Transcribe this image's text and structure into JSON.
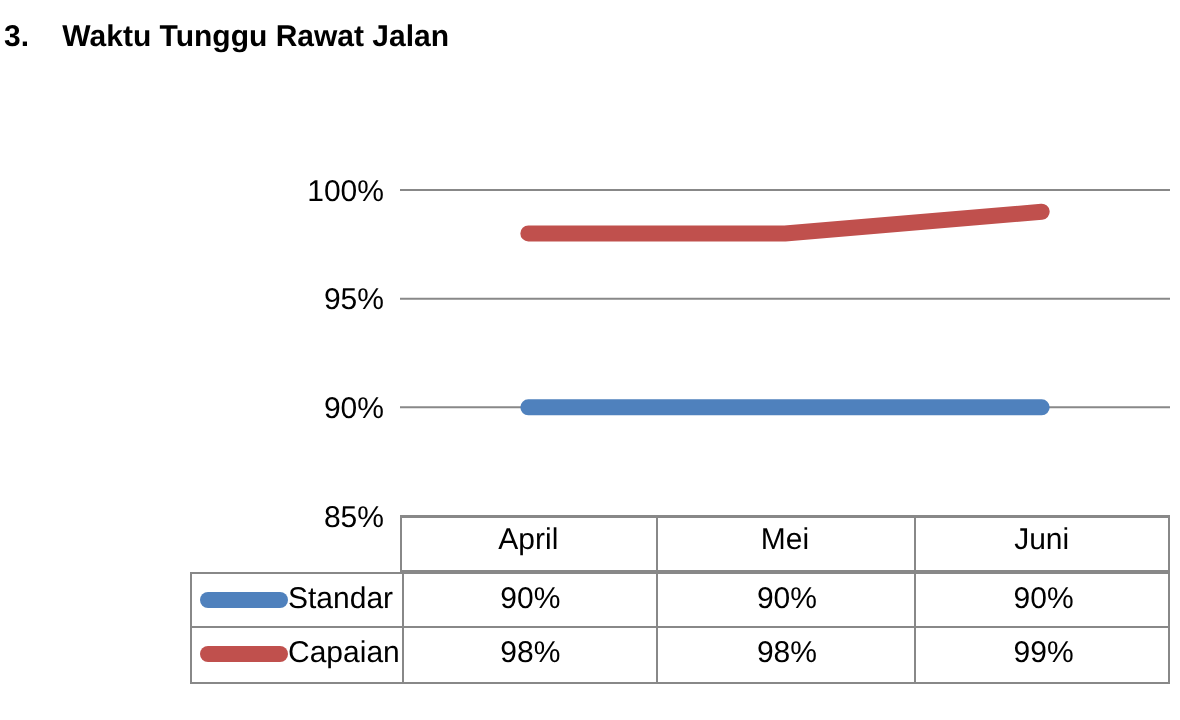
{
  "chart_data": {
    "type": "line",
    "title": "3.    Waktu Tunggu Rawat Jalan",
    "categories": [
      "April",
      "Mei",
      "Juni"
    ],
    "series": [
      {
        "name": "Standar",
        "color": "#4f81bd",
        "values": [
          90,
          90,
          90
        ],
        "value_labels": [
          "90%",
          "90%",
          "90%"
        ]
      },
      {
        "name": "Capaian",
        "color": "#c0504d",
        "values": [
          98,
          98,
          99
        ],
        "value_labels": [
          "98%",
          "98%",
          "99%"
        ]
      }
    ],
    "ylim": [
      85,
      100
    ],
    "yticks": [
      {
        "value": 85,
        "label": "85%"
      },
      {
        "value": 90,
        "label": "90%"
      },
      {
        "value": 95,
        "label": "95%"
      },
      {
        "value": 100,
        "label": "100%"
      }
    ],
    "grid": "y",
    "legend": "bottom",
    "marker": "none",
    "line_style": "solid"
  }
}
